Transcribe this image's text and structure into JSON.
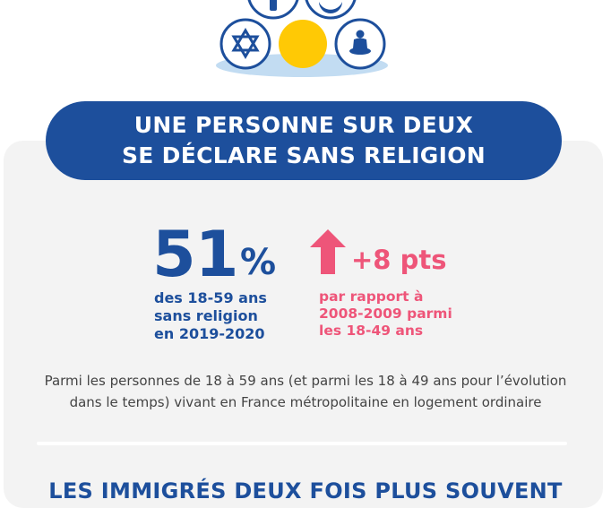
{
  "icons": {
    "top_row": [
      "cross-icon",
      "crescent-icon"
    ],
    "middle_row": [
      "star-of-david-icon",
      "no-religion-circle-icon",
      "buddha-icon"
    ],
    "colors": {
      "icon_blue": "#1d4f9c",
      "no_religion_yellow": "#ffc905",
      "shadow": "#c2dcf2"
    }
  },
  "banner": {
    "line1": "UNE PERSONNE SUR DEUX",
    "line2": "SE DÉCLARE SANS RELIGION",
    "color": "#1d4f9c"
  },
  "stat": {
    "value": "51",
    "unit": "%",
    "desc_line1": "des 18-59 ans",
    "desc_line2": "sans religion",
    "desc_line3": "en 2019-2020"
  },
  "evolution": {
    "value": "+8 pts",
    "desc_line1": "par rapport à",
    "desc_line2": "2008-2009 parmi",
    "desc_line3": "les 18-49 ans",
    "color": "#ee5579"
  },
  "note": {
    "line1": "Parmi les personnes de 18 à 59 ans (et parmi les 18 à 49 ans pour l’évolution",
    "line2": "dans le temps) vivant en France métropolitaine en logement ordinaire"
  },
  "next_section": {
    "title": "LES IMMIGRÉS DEUX FOIS PLUS SOUVENT"
  }
}
